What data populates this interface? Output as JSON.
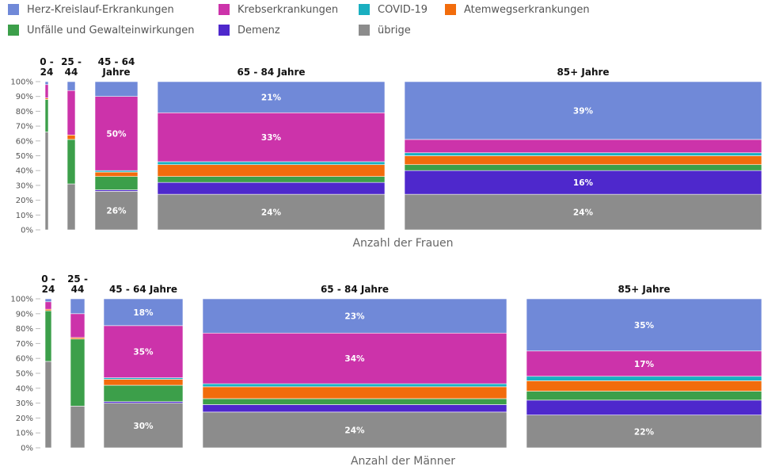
{
  "legend": [
    {
      "key": "herz",
      "label": "Herz-Kreislauf-Erkrankungen",
      "color": "#7089D8"
    },
    {
      "key": "krebs",
      "label": "Krebserkrankungen",
      "color": "#CC33AA"
    },
    {
      "key": "covid",
      "label": "COVID-19",
      "color": "#1AAFC0"
    },
    {
      "key": "atem",
      "label": "Atemwegserkrankungen",
      "color": "#F26C0C"
    },
    {
      "key": "unfall",
      "label": "Unfälle und Gewalteinwirkungen",
      "color": "#3C9F4A"
    },
    {
      "key": "demenz",
      "label": "Demenz",
      "color": "#4E28CC"
    },
    {
      "key": "uebrige",
      "label": "übrige",
      "color": "#8C8C8C"
    }
  ],
  "chart_data": [
    {
      "type": "bar",
      "title": "Anzahl der Frauen",
      "y_ticks": [
        "0%",
        "10%",
        "20%",
        "30%",
        "40%",
        "50%",
        "60%",
        "70%",
        "80%",
        "90%",
        "100%"
      ],
      "ylim": [
        0,
        100
      ],
      "groups": [
        {
          "label": [
            "0 -",
            "24"
          ],
          "share": 0.2,
          "values": {
            "herz": 2,
            "krebs": 9,
            "covid": 0,
            "atem": 1,
            "unfall": 22,
            "demenz": 0,
            "uebrige": 66
          }
        },
        {
          "label": [
            "25 -",
            "44"
          ],
          "share": 0.6,
          "values": {
            "herz": 6,
            "krebs": 30,
            "covid": 0,
            "atem": 3,
            "unfall": 30,
            "demenz": 0,
            "uebrige": 31
          }
        },
        {
          "label": [
            "45 - 64",
            "Jahre"
          ],
          "share": 3.5,
          "values": {
            "herz": 10,
            "krebs": 50,
            "covid": 1,
            "atem": 3,
            "unfall": 9,
            "demenz": 1,
            "uebrige": 26
          },
          "labels": {
            "krebs": "50%",
            "uebrige": "26%"
          }
        },
        {
          "label": [
            "65 - 84 Jahre"
          ],
          "share": 18.5,
          "values": {
            "herz": 21,
            "krebs": 33,
            "covid": 2,
            "atem": 8,
            "unfall": 4,
            "demenz": 8,
            "uebrige": 24
          },
          "labels": {
            "herz": "21%",
            "krebs": "33%",
            "uebrige": "24%"
          }
        },
        {
          "label": [
            "85+ Jahre"
          ],
          "share": 29.5,
          "values": {
            "herz": 39,
            "krebs": 9,
            "covid": 2,
            "atem": 6,
            "unfall": 4,
            "demenz": 16,
            "uebrige": 24
          },
          "labels": {
            "herz": "39%",
            "demenz": "16%",
            "uebrige": "24%"
          }
        }
      ]
    },
    {
      "type": "bar",
      "title": "Anzahl der Männer",
      "y_ticks": [
        "0%",
        "10%",
        "20%",
        "30%",
        "40%",
        "50%",
        "60%",
        "70%",
        "80%",
        "90%",
        "100%"
      ],
      "ylim": [
        0,
        100
      ],
      "groups": [
        {
          "label": [
            "0 -",
            "24"
          ],
          "share": 0.6,
          "values": {
            "herz": 2,
            "krebs": 5,
            "covid": 0,
            "atem": 1,
            "unfall": 34,
            "demenz": 0,
            "uebrige": 58
          }
        },
        {
          "label": [
            "25 -",
            "44"
          ],
          "share": 1.3,
          "values": {
            "herz": 10,
            "krebs": 16,
            "covid": 0,
            "atem": 1,
            "unfall": 45,
            "demenz": 0,
            "uebrige": 28
          }
        },
        {
          "label": [
            "45 - 64 Jahre"
          ],
          "share": 7.0,
          "values": {
            "herz": 18,
            "krebs": 35,
            "covid": 1,
            "atem": 4,
            "unfall": 11,
            "demenz": 1,
            "uebrige": 30
          },
          "labels": {
            "herz": "18%",
            "krebs": "35%",
            "uebrige": "30%"
          }
        },
        {
          "label": [
            "65 - 84 Jahre"
          ],
          "share": 27.5,
          "values": {
            "herz": 23,
            "krebs": 34,
            "covid": 2,
            "atem": 8,
            "unfall": 4,
            "demenz": 5,
            "uebrige": 24
          },
          "labels": {
            "herz": "23%",
            "krebs": "34%",
            "uebrige": "24%"
          }
        },
        {
          "label": [
            "85+ Jahre"
          ],
          "share": 19.5,
          "values": {
            "herz": 35,
            "krebs": 17,
            "covid": 3,
            "atem": 7,
            "unfall": 6,
            "demenz": 10,
            "uebrige": 22
          },
          "labels": {
            "herz": "35%",
            "krebs": "17%",
            "uebrige": "22%"
          }
        }
      ]
    }
  ]
}
